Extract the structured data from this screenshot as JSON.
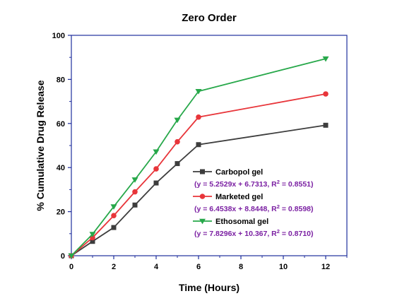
{
  "chart_data": {
    "type": "line",
    "title": "Zero Order",
    "xlabel": "Time (Hours)",
    "ylabel": "% Cumulative Drug Release",
    "xlim": [
      0,
      13
    ],
    "ylim": [
      0,
      100
    ],
    "xticks": [
      0,
      2,
      4,
      6,
      8,
      10,
      12
    ],
    "yticks": [
      0,
      20,
      40,
      60,
      80,
      100
    ],
    "grid": false,
    "legend_position": "center-right",
    "series": [
      {
        "name": "Carbopol gel",
        "equation": "(y = 5.2529x + 6.7313, R",
        "r2_value": " = 0.8551)",
        "color": "#3d3d3d",
        "marker": "square",
        "x": [
          0,
          1,
          2,
          3,
          4,
          5,
          6,
          12
        ],
        "y": [
          0,
          6.5,
          12.8,
          23.0,
          33.0,
          41.8,
          50.4,
          59.2
        ]
      },
      {
        "name": "Marketed gel",
        "equation": "(y = 6.4538x + 8.8448, R",
        "r2_value": " = 0.8598)",
        "color": "#e8353a",
        "marker": "circle",
        "x": [
          0,
          1,
          2,
          3,
          4,
          5,
          6,
          12
        ],
        "y": [
          0,
          8.2,
          18.2,
          29.0,
          39.4,
          51.7,
          62.9,
          73.4
        ]
      },
      {
        "name": "Ethosomal gel",
        "equation": "(y = 7.8296x + 10.367, R",
        "r2_value": " = 0.8710)",
        "color": "#27a84a",
        "marker": "triangle-down",
        "x": [
          0,
          1,
          2,
          3,
          4,
          5,
          6,
          12
        ],
        "y": [
          0,
          9.8,
          22.3,
          34.5,
          47.2,
          61.6,
          74.6,
          89.4
        ]
      }
    ],
    "axis_color": "#1f2e9c",
    "superscript": "2"
  }
}
